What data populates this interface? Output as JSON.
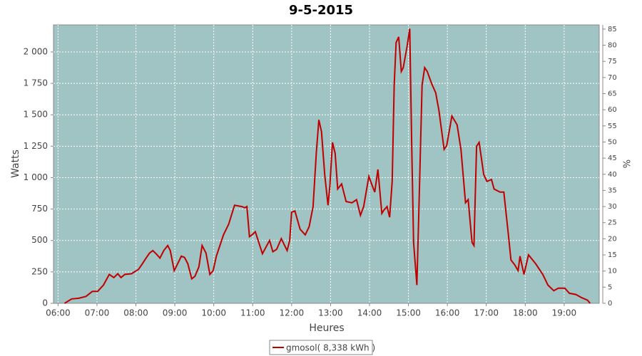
{
  "chart_data": {
    "type": "line",
    "title": "9-5-2015",
    "x_label": "Heures",
    "y_label": "Watts",
    "y2_label": "%",
    "x": [
      "06:10",
      "06:21",
      "06:32",
      "06:43",
      "06:53",
      "07:01",
      "07:10",
      "07:19",
      "07:26",
      "07:32",
      "07:37",
      "07:43",
      "07:53",
      "08:04",
      "08:10",
      "08:15",
      "08:21",
      "08:26",
      "08:32",
      "08:37",
      "08:43",
      "08:49",
      "08:53",
      "08:59",
      "09:02",
      "09:10",
      "09:15",
      "09:20",
      "09:26",
      "09:31",
      "09:37",
      "09:42",
      "09:48",
      "09:54",
      "09:59",
      "10:04",
      "10:15",
      "10:23",
      "10:32",
      "10:43",
      "10:48",
      "10:51",
      "10:55",
      "10:59",
      "11:04",
      "11:15",
      "11:26",
      "11:31",
      "11:37",
      "11:44",
      "11:53",
      "11:57",
      "12:00",
      "12:05",
      "12:13",
      "12:21",
      "12:27",
      "12:33",
      "12:38",
      "12:42",
      "12:46",
      "12:51",
      "12:56",
      "12:59",
      "13:03",
      "13:07",
      "13:11",
      "13:17",
      "13:24",
      "13:33",
      "13:40",
      "13:46",
      "13:51",
      "13:59",
      "14:04",
      "14:08",
      "14:13",
      "14:19",
      "14:22",
      "14:27",
      "14:31",
      "14:35",
      "14:38",
      "14:41",
      "14:45",
      "14:49",
      "14:52",
      "14:58",
      "15:02",
      "15:05",
      "15:08",
      "15:13",
      "15:16",
      "15:21",
      "15:25",
      "15:29",
      "15:36",
      "15:42",
      "15:47",
      "15:55",
      "15:59",
      "16:07",
      "16:15",
      "16:21",
      "16:28",
      "16:32",
      "16:38",
      "16:41",
      "16:45",
      "16:49",
      "16:56",
      "17:01",
      "17:08",
      "17:12",
      "17:21",
      "17:27",
      "17:34",
      "17:38",
      "17:44",
      "17:49",
      "17:52",
      "17:58",
      "18:05",
      "18:16",
      "18:27",
      "18:35",
      "18:44",
      "18:51",
      "19:01",
      "19:08",
      "19:18",
      "19:27",
      "19:36",
      "19:40"
    ],
    "series": [
      {
        "name": "gmosol( 8,338 kWh )",
        "color": "#c00000",
        "values": [
          0,
          35,
          40,
          55,
          95,
          95,
          145,
          230,
          205,
          235,
          205,
          230,
          235,
          270,
          315,
          355,
          400,
          420,
          390,
          360,
          420,
          460,
          420,
          260,
          290,
          375,
          365,
          315,
          195,
          215,
          290,
          460,
          400,
          230,
          260,
          375,
          545,
          630,
          780,
          770,
          760,
          770,
          530,
          545,
          570,
          395,
          500,
          410,
          430,
          515,
          420,
          500,
          725,
          735,
          590,
          545,
          610,
          770,
          1195,
          1460,
          1365,
          1025,
          780,
          940,
          1280,
          1195,
          910,
          950,
          810,
          800,
          825,
          700,
          770,
          1010,
          940,
          885,
          1065,
          715,
          740,
          770,
          685,
          970,
          1735,
          2075,
          2120,
          1845,
          1875,
          2045,
          2185,
          1280,
          485,
          145,
          715,
          1735,
          1875,
          1845,
          1745,
          1675,
          1535,
          1225,
          1255,
          1490,
          1420,
          1225,
          800,
          825,
          485,
          460,
          1250,
          1280,
          1025,
          970,
          985,
          910,
          885,
          885,
          545,
          345,
          305,
          260,
          375,
          230,
          385,
          315,
          230,
          145,
          100,
          120,
          120,
          80,
          70,
          45,
          25,
          0
        ]
      }
    ],
    "xlim": [
      "05:53",
      "19:54"
    ],
    "xticks": [
      "06:00",
      "07:00",
      "08:00",
      "09:00",
      "10:00",
      "11:00",
      "12:00",
      "13:00",
      "14:00",
      "15:00",
      "16:00",
      "17:00",
      "18:00",
      "19:00"
    ],
    "ylim": [
      0,
      2215
    ],
    "yticks": [
      0,
      250,
      500,
      750,
      {
        "value": 1000,
        "label": "1 000"
      },
      {
        "value": 1250,
        "label": "1 250"
      },
      {
        "value": 1500,
        "label": "1 500"
      },
      {
        "value": 1750,
        "label": "1 750"
      },
      {
        "value": 2000,
        "label": "2 000"
      }
    ],
    "y2lim": [
      0,
      86.3
    ],
    "y2ticks": [
      0,
      5,
      10,
      15,
      20,
      25,
      30,
      35,
      40,
      45,
      50,
      55,
      60,
      65,
      70,
      75,
      80,
      85
    ],
    "grid": true,
    "legend": "bottom"
  }
}
